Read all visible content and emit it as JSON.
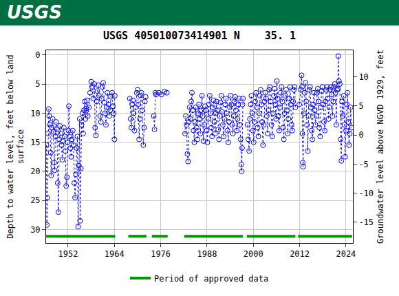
{
  "header": {
    "logo": "USGS"
  },
  "chart_data": {
    "type": "scatter",
    "title": "USGS 405010073414901 N    35. 1",
    "y_label": "Depth to water level, feet below land\nsurface",
    "y2_label": "Groundwater level above NGVD 1929, feet",
    "xlim": [
      1946.3,
      2025.8
    ],
    "xticks": [
      1952,
      1964,
      1976,
      1988,
      2000,
      2012,
      2024
    ],
    "ylim": [
      32.3,
      -0.8
    ],
    "yticks": [
      0,
      5,
      10,
      15,
      20,
      25,
      30
    ],
    "y2lim": [
      -18.55,
      14.55
    ],
    "y2ticks": [
      -15,
      -10,
      -5,
      0,
      5,
      10
    ],
    "grid": true,
    "legend": "bottom",
    "series": [
      {
        "name": "Depth to water level",
        "color": "#0000ff",
        "marker": "circle-open",
        "line_style": "dot",
        "x": [
          1946.4,
          1946.5,
          1946.6,
          1946.8,
          1947.0,
          1947.1,
          1947.3,
          1947.5,
          1947.6,
          1947.8,
          1948.0,
          1948.2,
          1948.4,
          1948.5,
          1948.7,
          1948.9,
          1949.1,
          1949.3,
          1949.5,
          1949.7,
          1949.9,
          1950.1,
          1950.3,
          1950.5,
          1950.7,
          1950.9,
          1951.1,
          1951.3,
          1951.5,
          1951.7,
          1951.9,
          1952.1,
          1952.2,
          1952.4,
          1952.6,
          1952.8,
          1953.0,
          1953.2,
          1953.4,
          1953.6,
          1953.8,
          1954.0,
          1954.2,
          1954.4,
          1954.6,
          1954.8,
          1955.0,
          1955.1,
          1955.3,
          1955.5,
          1955.7,
          1955.9,
          1956.1,
          1956.3,
          1956.5,
          1956.7,
          1956.9,
          1957.1,
          1957.4,
          1957.7,
          1958.0,
          1958.2,
          1958.5,
          1958.8,
          1959.0,
          1959.2,
          1959.4,
          1959.6,
          1959.8,
          1960.0,
          1960.3,
          1960.5,
          1960.7,
          1960.9,
          1961.1,
          1961.4,
          1961.6,
          1961.8,
          1962.0,
          1962.2,
          1962.5,
          1962.7,
          1962.9,
          1963.1,
          1963.4,
          1963.6,
          1963.8,
          1964.0,
          1964.1,
          null,
          1968.0,
          1968.2,
          1968.4,
          1968.6,
          1968.8,
          1969.0,
          1969.2,
          1969.5,
          1969.8,
          1970.0,
          1970.2,
          1970.4,
          1970.6,
          1970.8,
          1971.0,
          1971.2,
          1971.5,
          1971.7,
          1971.9,
          1972.1,
          null,
          1974.2,
          1974.4,
          1974.6,
          1974.8,
          1975.5,
          1976.2,
          1977.0,
          1977.6,
          null,
          1982.3,
          1982.5,
          1982.7,
          1982.9,
          1983.1,
          1983.3,
          1983.5,
          1983.7,
          1983.9,
          1984.1,
          1984.3,
          1984.5,
          1984.7,
          1984.9,
          1985.1,
          1985.3,
          1985.5,
          1985.7,
          1985.9,
          1986.1,
          1986.3,
          1986.5,
          1986.7,
          1986.9,
          1987.1,
          1987.3,
          1987.5,
          1987.7,
          1987.9,
          1988.1,
          1988.3,
          1988.5,
          1988.7,
          1988.9,
          1989.1,
          1989.3,
          1989.5,
          1989.7,
          1989.9,
          1990.1,
          1990.3,
          1990.5,
          1990.7,
          1990.9,
          1991.1,
          1991.3,
          1991.5,
          1991.7,
          1991.9,
          1992.1,
          1992.3,
          1992.5,
          1992.7,
          1992.9,
          1993.1,
          1993.3,
          1993.5,
          1993.7,
          1993.9,
          1994.1,
          1994.3,
          1994.5,
          1994.7,
          1994.9,
          1995.1,
          1995.3,
          1995.5,
          1995.7,
          1995.9,
          1996.1,
          1996.3,
          1996.5,
          1996.7,
          1996.9,
          1997.0,
          1997.1,
          1997.2,
          1997.3,
          null,
          1998.5,
          1998.7,
          1998.9,
          1999.1,
          1999.3,
          1999.5,
          1999.7,
          1999.9,
          2000.1,
          2000.3,
          2000.5,
          2000.7,
          2000.9,
          2001.1,
          2001.3,
          2001.5,
          2001.7,
          2001.9,
          2002.1,
          2002.3,
          2002.5,
          2002.7,
          2002.9,
          2003.1,
          2003.3,
          2003.5,
          2003.7,
          2003.9,
          2004.1,
          2004.3,
          2004.5,
          2004.7,
          2004.9,
          2005.1,
          2005.3,
          2005.5,
          2005.7,
          2005.9,
          2006.1,
          2006.3,
          2006.5,
          2006.7,
          2006.9,
          2007.1,
          2007.3,
          2007.5,
          2007.7,
          2007.9,
          2008.1,
          2008.3,
          2008.5,
          2008.7,
          2008.9,
          2009.1,
          2009.3,
          2009.5,
          2009.7,
          2009.9,
          2010.1,
          2010.3,
          2010.5,
          2010.7,
          2010.9,
          null,
          2011.9,
          2012.3,
          2012.5,
          2012.6,
          2012.7,
          2012.8,
          2012.9,
          2013.1,
          2013.3,
          2013.5,
          2013.7,
          2013.9,
          2014.1,
          2014.3,
          2014.5,
          2014.7,
          2014.9,
          2015.1,
          2015.3,
          2015.5,
          2015.7,
          2015.9,
          2016.1,
          2016.3,
          2016.5,
          2016.7,
          2016.9,
          2017.1,
          2017.3,
          2017.5,
          2017.7,
          2017.9,
          2018.1,
          2018.3,
          2018.5,
          2018.7,
          2018.9,
          2019.1,
          2019.3,
          2019.5,
          2019.7,
          2019.9,
          2020.1,
          2020.3,
          2020.5,
          2020.7,
          2020.9,
          2021.1,
          2021.3,
          2021.5,
          2021.7,
          2021.9,
          2022.0,
          2022.2,
          2022.4,
          2022.6,
          2022.8,
          2023.0,
          2023.2,
          2023.4,
          2023.6,
          2023.8,
          2024.0,
          2024.2,
          2024.4,
          2024.6,
          2024.8,
          2025.0,
          2025.2,
          2025.4
        ],
        "values": [
          15.5,
          29.2,
          24.5,
          13.5,
          9.3,
          10.5,
          12,
          16.8,
          20.7,
          12.5,
          11,
          13.2,
          18.5,
          19.8,
          14,
          11.5,
          12.8,
          22,
          27,
          14.5,
          12.2,
          13.5,
          15.5,
          18,
          14.8,
          12.5,
          14,
          16.5,
          22.5,
          21,
          15,
          13,
          8.8,
          14,
          16,
          17.5,
          14.5,
          13,
          15.5,
          22,
          24.5,
          20.5,
          16,
          14,
          29.5,
          19,
          11,
          28.5,
          19.5,
          12,
          10,
          13.5,
          9.5,
          8,
          11,
          9.2,
          7.8,
          10.5,
          9,
          6.5,
          4.6,
          5.5,
          7.5,
          5,
          12.5,
          13.8,
          8,
          6.2,
          5.2,
          7,
          10.5,
          11.5,
          7.5,
          5.5,
          4.8,
          8.2,
          10,
          12,
          9,
          6.5,
          8.5,
          10.5,
          9.5,
          7.2,
          6.5,
          8.8,
          10,
          14.5,
          7,
          null,
          7.5,
          11,
          12.5,
          8.5,
          7.8,
          10,
          13,
          9,
          6.5,
          6,
          8.5,
          14.5,
          11,
          7,
          6.5,
          9.5,
          15.5,
          12.5,
          8,
          7.2,
          null,
          10.5,
          12.8,
          6.5,
          6.8,
          6.5,
          6.8,
          6.3,
          6.5,
          null,
          13.5,
          10.5,
          12,
          17,
          18.3,
          11.5,
          9,
          11,
          8,
          6.5,
          9.5,
          13,
          15,
          11.5,
          9,
          12.5,
          14.5,
          10,
          8.5,
          11,
          13.5,
          9.5,
          7,
          10.5,
          14.8,
          12,
          8.8,
          9.5,
          13,
          15,
          11,
          8.5,
          7,
          10,
          12.5,
          14,
          9,
          7.8,
          11.5,
          13.5,
          10,
          8,
          9.5,
          12.8,
          14.5,
          10.5,
          8.2,
          7,
          9.8,
          12,
          14,
          11,
          8.5,
          7.5,
          10,
          13,
          15,
          11.5,
          9,
          7,
          8.5,
          12,
          13.5,
          10.5,
          8,
          7.2,
          9.5,
          13,
          11,
          8.5,
          7.5,
          12,
          14.5,
          18.8,
          20,
          16,
          8.5,
          7.5,
          null,
          12,
          14.5,
          16.5,
          11,
          8.5,
          7,
          10,
          13,
          15,
          11.5,
          8,
          6.5,
          9,
          12.5,
          14,
          10,
          7,
          6,
          8.5,
          11.5,
          15.5,
          12,
          8,
          6.5,
          7.5,
          10.5,
          13.5,
          9.5,
          6,
          5.5,
          8,
          12,
          14,
          10,
          7,
          5.8,
          8.5,
          11,
          4.5,
          7.5,
          10.5,
          13,
          9,
          6.5,
          5.5,
          8,
          12.5,
          14.5,
          10,
          7,
          6,
          9.5,
          13.5,
          11,
          7.5,
          5.5,
          8.5,
          12,
          13,
          8,
          6,
          5.5,
          9,
          null,
          8.5,
          6,
          3.5,
          5.5,
          13.5,
          18.5,
          19.2,
          10,
          6.5,
          4.8,
          8,
          12,
          16.5,
          10.5,
          6,
          5.5,
          9,
          13,
          14.5,
          8.5,
          6.5,
          9.5,
          12,
          10.5,
          6.5,
          5.8,
          8,
          12.5,
          14,
          9,
          6.2,
          5.5,
          8.5,
          11.5,
          13,
          8,
          6,
          5.5,
          7.5,
          11,
          9,
          6,
          5.5,
          6.8,
          10.5,
          8,
          5.5,
          5,
          6.5,
          12,
          6,
          5.8,
          0.2,
          4.5,
          5,
          14.5,
          18.2,
          8,
          10.5,
          7,
          12,
          17.5,
          13,
          8.5,
          6.5,
          11.5,
          15.5,
          13.5,
          9,
          12.5
        ]
      },
      {
        "name": "Period of approved data",
        "color": "#009900",
        "type": "line",
        "periods": [
          [
            1946.3,
            1964.2
          ],
          [
            1967.6,
            1972.3
          ],
          [
            1973.7,
            1977.8
          ],
          [
            1982.1,
            1997.3
          ],
          [
            1998.3,
            2010.9
          ],
          [
            2011.6,
            2025.6
          ]
        ]
      }
    ]
  }
}
